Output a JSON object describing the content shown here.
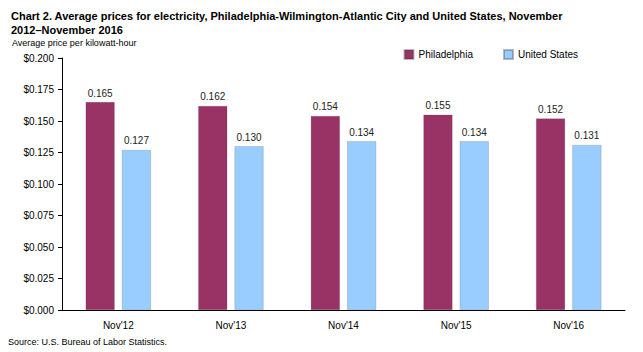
{
  "chart_data": {
    "type": "bar",
    "title": "Chart 2. Average prices for electricity, Philadelphia-Wilmington-Atlantic City and United States, November 2012–November 2016",
    "y_label": "Average price per kilowatt-hour",
    "annotation": "Source: U.S. Bureau of Labor Statistics.",
    "categories": [
      "Nov'12",
      "Nov'13",
      "Nov'14",
      "Nov'15",
      "Nov'16"
    ],
    "series": [
      {
        "name": "Philadelphia",
        "color": "#993366",
        "values": [
          0.165,
          0.162,
          0.154,
          0.155,
          0.152
        ],
        "value_labels": [
          "0.165",
          "0.162",
          "0.154",
          "0.155",
          "0.152"
        ]
      },
      {
        "name": "United States",
        "color": "#99ccff",
        "values": [
          0.127,
          0.13,
          0.134,
          0.134,
          0.131
        ],
        "value_labels": [
          "0.127",
          "0.130",
          "0.134",
          "0.134",
          "0.131"
        ]
      }
    ],
    "ylim": [
      0,
      0.2
    ],
    "yticks": [
      {
        "value": 0,
        "label": "$0.000"
      },
      {
        "value": 0.025,
        "label": "$0.025"
      },
      {
        "value": 0.05,
        "label": "$0.050"
      },
      {
        "value": 0.075,
        "label": "$0.075"
      },
      {
        "value": 0.1,
        "label": "$0.100"
      },
      {
        "value": 0.125,
        "label": "$0.125"
      },
      {
        "value": 0.15,
        "label": "$0.150"
      },
      {
        "value": 0.175,
        "label": "$0.175"
      },
      {
        "value": 0.2,
        "label": "$0.200"
      }
    ],
    "grid": false,
    "legend": "top-right",
    "data_labels": true
  }
}
